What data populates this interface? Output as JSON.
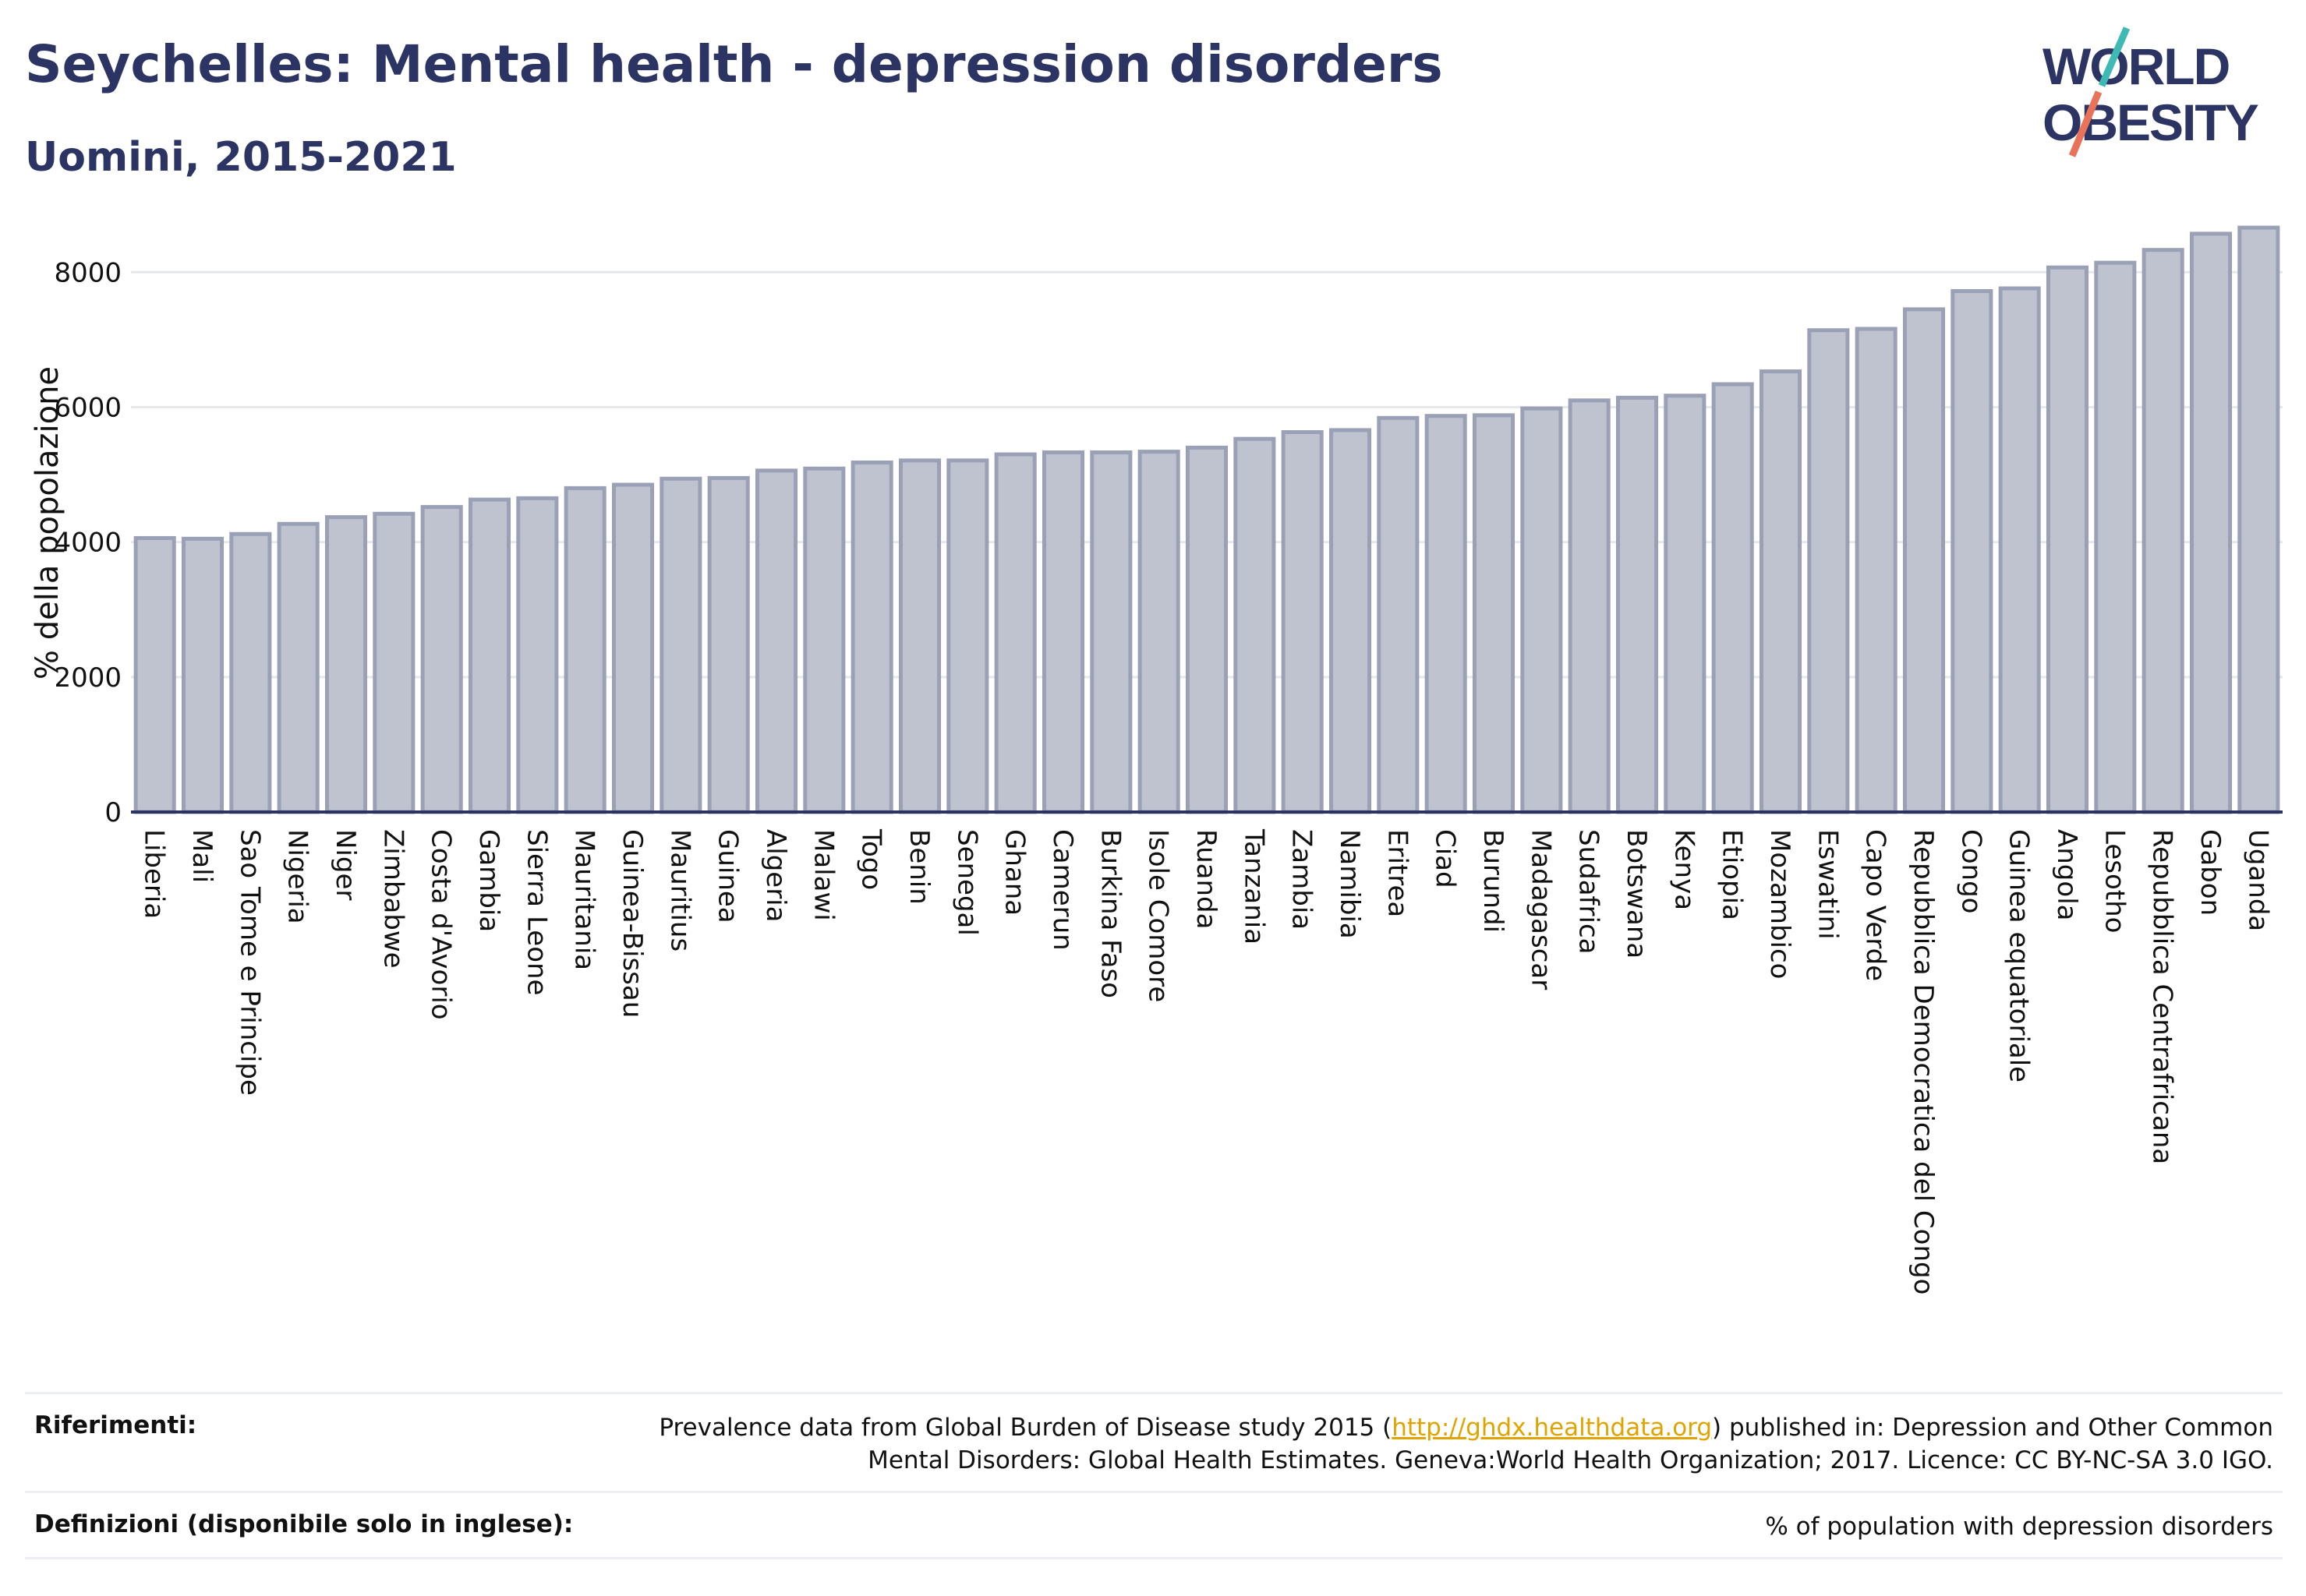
{
  "header": {
    "title": "Seychelles: Mental health - depression disorders",
    "subtitle": "Uomini, 2015-2021"
  },
  "logo": {
    "line1": "WORLD",
    "line2": "OBESITY",
    "accent1": "#3fb9b3",
    "accent2": "#e8735a",
    "color": "#2b3462"
  },
  "chart_data": {
    "type": "bar",
    "title": "Seychelles: Mental health - depression disorders",
    "subtitle": "Uomini, 2015-2021",
    "xlabel": "",
    "ylabel": "% della popolazione",
    "ylim": [
      0,
      8800
    ],
    "yticks": [
      0,
      2000,
      4000,
      6000,
      8000
    ],
    "grid": true,
    "bar_color": "#bfc3d0",
    "categories": [
      "Liberia",
      "Mali",
      "Sao Tome e Principe",
      "Nigeria",
      "Niger",
      "Zimbabwe",
      "Costa d'Avorio",
      "Gambia",
      "Sierra Leone",
      "Mauritania",
      "Guinea-Bissau",
      "Mauritius",
      "Guinea",
      "Algeria",
      "Malawi",
      "Togo",
      "Benin",
      "Senegal",
      "Ghana",
      "Camerun",
      "Burkina Faso",
      "Isole Comore",
      "Ruanda",
      "Tanzania",
      "Zambia",
      "Namibia",
      "Eritrea",
      "Ciad",
      "Burundi",
      "Madagascar",
      "Sudafrica",
      "Botswana",
      "Kenya",
      "Etiopia",
      "Mozambico",
      "Eswatini",
      "Capo Verde",
      "Repubblica Democratica del Congo",
      "Congo",
      "Guinea equatoriale",
      "Angola",
      "Lesotho",
      "Repubblica Centrafricana",
      "Gabon",
      "Uganda"
    ],
    "values": [
      4060,
      4050,
      4120,
      4270,
      4370,
      4420,
      4520,
      4630,
      4650,
      4800,
      4850,
      4940,
      4950,
      5060,
      5090,
      5180,
      5210,
      5210,
      5300,
      5330,
      5330,
      5340,
      5400,
      5530,
      5630,
      5660,
      5840,
      5870,
      5880,
      5980,
      6100,
      6140,
      6170,
      6340,
      6530,
      7140,
      7160,
      7450,
      7720,
      7760,
      8070,
      8140,
      8330,
      8570,
      8660
    ]
  },
  "footer": {
    "references_label": "Riferimenti:",
    "references_pre": "Prevalence data from Global Burden of Disease study 2015 (",
    "references_link": "http://ghdx.healthdata.org",
    "references_post": ") published in: Depression and Other Common",
    "references_line2": "Mental Disorders: Global Health Estimates. Geneva:World Health Organization; 2017. Licence: CC BY-NC-SA 3.0 IGO.",
    "definitions_label": "Definizioni (disponibile solo in inglese):",
    "definitions_text": "% of population with depression disorders"
  }
}
